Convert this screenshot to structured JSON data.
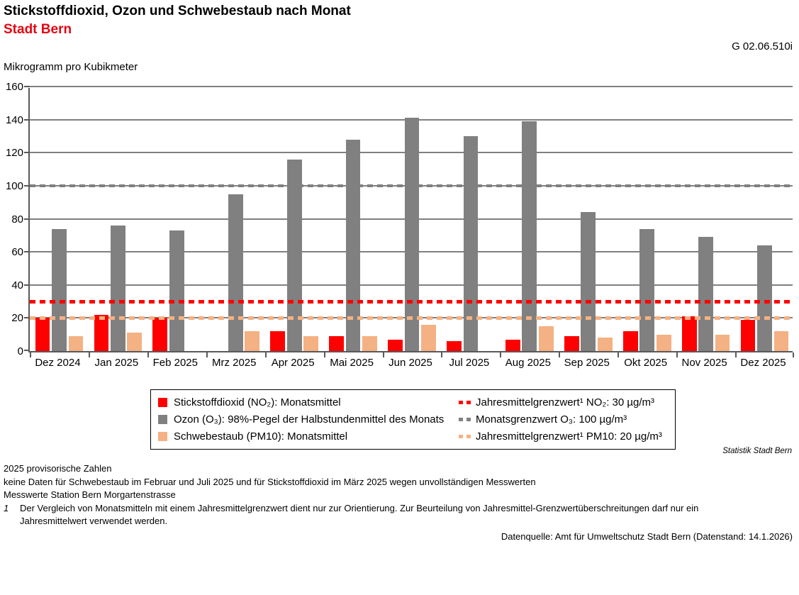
{
  "header": {
    "title": "Stickstoffdioxid, Ozon und Schwebestaub nach Monat",
    "subtitle": "Stadt Bern",
    "chart_code": "G 02.06.510i",
    "unit_label": "Mikrogramm pro Kubikmeter"
  },
  "chart_data": {
    "type": "bar",
    "title": "Stickstoffdioxid, Ozon und Schwebestaub nach Monat — Stadt Bern",
    "ylabel": "Mikrogramm pro Kubikmeter",
    "ylim": [
      0,
      160
    ],
    "ytick_step": 20,
    "grid": true,
    "legend_position": "bottom",
    "categories": [
      "Dez 2024",
      "Jan 2025",
      "Feb 2025",
      "Mrz 2025",
      "Apr 2025",
      "Mai 2025",
      "Jun 2025",
      "Jul 2025",
      "Aug 2025",
      "Sep 2025",
      "Okt 2025",
      "Nov 2025",
      "Dez 2025"
    ],
    "series": [
      {
        "name": "Stickstoffdioxid (NO₂): Monatsmittel",
        "color": "#ff0000",
        "values": [
          20,
          22,
          20,
          null,
          12,
          9,
          7,
          6,
          7,
          9,
          12,
          21,
          19
        ]
      },
      {
        "name": "Ozon (O₃): 98%-Pegel der Halbstundenmittel des Monats",
        "color": "#808080",
        "values": [
          74,
          76,
          73,
          95,
          116,
          128,
          141,
          130,
          139,
          84,
          74,
          69,
          64
        ]
      },
      {
        "name": "Schwebestaub (PM10): Monatsmittel",
        "color": "#f4b183",
        "values": [
          9,
          11,
          null,
          12,
          9,
          9,
          16,
          null,
          15,
          8,
          10,
          10,
          12
        ]
      }
    ],
    "limit_lines": [
      {
        "name": "Jahresmittelgrenzwert¹  NO₂: 30 µg/m³",
        "value": 30,
        "color": "#ff0000",
        "thickness": 5
      },
      {
        "name": "Monatsgrenzwert O₃: 100 µg/m³",
        "value": 100,
        "color": "#808080",
        "thickness": 4
      },
      {
        "name": "Jahresmittelgrenzwert¹  PM10: 20 µg/m³",
        "value": 20,
        "color": "#f4b183",
        "thickness": 5
      }
    ]
  },
  "footer": {
    "statistik": "Statistik Stadt Bern",
    "notes": [
      "2025 provisorische Zahlen",
      "keine Daten für Schwebestaub im Februar und Juli 2025 und für Stickstoffdioxid im März 2025 wegen unvollständigen Messwerten",
      "Messwerte Station Bern Morgartenstrasse"
    ],
    "footnote": {
      "marker": "1",
      "text": "Der Vergleich von Monatsmitteln mit einem Jahresmittelgrenzwert dient nur zur Orientierung. Zur Beurteilung von Jahresmittel-Grenzwertüberschreitungen darf nur ein Jahresmittelwert verwendet werden."
    },
    "datasource": "Datenquelle: Amt für Umweltschutz Stadt Bern (Datenstand: 14.1.2026)"
  }
}
